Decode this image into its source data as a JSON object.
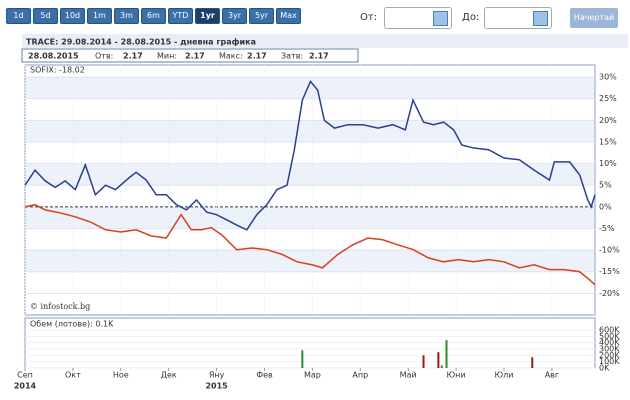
{
  "toolbar": {
    "ranges": [
      "1d",
      "5d",
      "10d",
      "1m",
      "3m",
      "6m",
      "YTD",
      "1yr",
      "3yr",
      "5yr",
      "Max"
    ],
    "from_label": "От:",
    "to_label": "До:",
    "button": "Начертай"
  },
  "chart_data": [
    {
      "type": "line",
      "title": "TRACE: 29.08.2014 - 28.08.2015 - дневна графика",
      "info": {
        "date": "28.08.2015",
        "fields": [
          {
            "label": "Отв:",
            "value": 2.17
          },
          {
            "label": "Мин:",
            "value": 2.17
          },
          {
            "label": "Макс:",
            "value": 2.17
          },
          {
            "label": "Затв:",
            "value": 2.17
          }
        ]
      },
      "watermark": "© infostock.bg",
      "xlim": [
        0,
        11.9
      ],
      "xticks": [
        {
          "value": 0,
          "label": "Сеп"
        },
        {
          "value": 1,
          "label": "Окт"
        },
        {
          "value": 2,
          "label": "Ное"
        },
        {
          "value": 3,
          "label": "Дек"
        },
        {
          "value": 4,
          "label": "Яну"
        },
        {
          "value": 5,
          "label": "Фев"
        },
        {
          "value": 6,
          "label": "Мар"
        },
        {
          "value": 7,
          "label": "Апр"
        },
        {
          "value": 8,
          "label": "Май"
        },
        {
          "value": 9,
          "label": "Юни"
        },
        {
          "value": 10,
          "label": "Юли"
        },
        {
          "value": 11,
          "label": "Авг"
        }
      ],
      "year_labels": [
        {
          "value": 0,
          "label": "2014"
        },
        {
          "value": 4,
          "label": "2015"
        }
      ],
      "ylim": [
        -25,
        32.8
      ],
      "yticks": [
        {
          "value": 30,
          "label": "30%"
        },
        {
          "value": 25,
          "label": "25%"
        },
        {
          "value": 20,
          "label": "20%"
        },
        {
          "value": 15,
          "label": "15%"
        },
        {
          "value": 10,
          "label": "10%"
        },
        {
          "value": 5,
          "label": "5%"
        },
        {
          "value": 0,
          "label": "0%"
        },
        {
          "value": -5,
          "label": "-5%"
        },
        {
          "value": -10,
          "label": "-10%"
        },
        {
          "value": -15,
          "label": "-15%"
        },
        {
          "value": -20,
          "label": "-20%"
        }
      ],
      "grid": true,
      "series": [
        {
          "color": "#2b3f8f",
          "x": [
            0,
            0.21,
            0.42,
            0.63,
            0.84,
            1.05,
            1.26,
            1.47,
            1.68,
            1.89,
            2.17,
            2.32,
            2.53,
            2.74,
            2.95,
            3.16,
            3.37,
            3.58,
            3.79,
            4.0,
            4.21,
            4.42,
            4.63,
            4.84,
            5.05,
            5.26,
            5.47,
            5.62,
            5.79,
            5.96,
            6.11,
            6.25,
            6.46,
            6.74,
            7.05,
            7.37,
            7.68,
            7.94,
            8.1,
            8.32,
            8.53,
            8.74,
            8.95,
            9.12,
            9.37,
            9.68,
            10.0,
            10.32,
            10.63,
            10.95,
            11.05,
            11.37,
            11.58,
            11.75,
            11.82,
            11.9
          ],
          "values": [
            5,
            8.5,
            6,
            4.5,
            6,
            4,
            9.7,
            2.8,
            5,
            4,
            6.7,
            8,
            6.2,
            2.8,
            2.8,
            0.5,
            -0.7,
            1.6,
            -1.2,
            -1.8,
            -3,
            -4.2,
            -5.3,
            -1.8,
            0.5,
            4,
            5,
            13,
            24.7,
            29,
            27,
            20,
            18.2,
            19,
            19,
            18.2,
            19,
            17.8,
            24.7,
            19.6,
            19,
            19.6,
            17.8,
            14.3,
            13.6,
            13.2,
            11.3,
            10.9,
            8.5,
            6.2,
            10.4,
            10.4,
            7.4,
            1.6,
            0,
            2.8
          ]
        },
        {
          "name": "SOFIX: -18.02",
          "color": "#d8401c",
          "x": [
            0,
            0.21,
            0.42,
            0.74,
            1.05,
            1.37,
            1.68,
            2.0,
            2.32,
            2.63,
            2.95,
            3.26,
            3.47,
            3.68,
            3.89,
            4.11,
            4.42,
            4.74,
            5.05,
            5.37,
            5.68,
            6.0,
            6.21,
            6.53,
            6.84,
            7.16,
            7.47,
            7.79,
            8.11,
            8.42,
            8.74,
            9.05,
            9.37,
            9.68,
            10.0,
            10.32,
            10.63,
            10.95,
            11.26,
            11.58,
            11.79,
            11.9
          ],
          "values": [
            0,
            0.5,
            -0.7,
            -1.4,
            -2.3,
            -3.5,
            -5.3,
            -5.8,
            -5.3,
            -6.7,
            -7.2,
            -1.8,
            -5.3,
            -5.3,
            -4.8,
            -6.5,
            -9.9,
            -9.5,
            -9.9,
            -11,
            -12.7,
            -13.4,
            -14.1,
            -11,
            -8.8,
            -7.2,
            -7.6,
            -8.8,
            -9.9,
            -11.8,
            -12.7,
            -12.2,
            -12.7,
            -12.2,
            -12.7,
            -14.1,
            -13.4,
            -14.5,
            -14.5,
            -15,
            -16.9,
            -18.02
          ]
        }
      ]
    },
    {
      "type": "bar",
      "title": "Обем (лотове): 0.1K",
      "x": [
        5.79,
        8.32,
        8.63,
        8.7,
        8.8,
        10.59
      ],
      "values": [
        280000,
        200000,
        250000,
        40000,
        440000,
        170000
      ],
      "colors": [
        "#2e8b2e",
        "#a01818",
        "#a01818",
        "#2e8b2e",
        "#2e8b2e",
        "#a01818"
      ],
      "ylim": [
        0,
        790000
      ],
      "yticks": [
        {
          "value": 600000,
          "label": "600K"
        },
        {
          "value": 500000,
          "label": "500K"
        },
        {
          "value": 400000,
          "label": "400K"
        },
        {
          "value": 300000,
          "label": "300K"
        },
        {
          "value": 200000,
          "label": "200K"
        },
        {
          "value": 100000,
          "label": "100K"
        },
        {
          "value": 0,
          "label": "0K"
        }
      ]
    }
  ]
}
